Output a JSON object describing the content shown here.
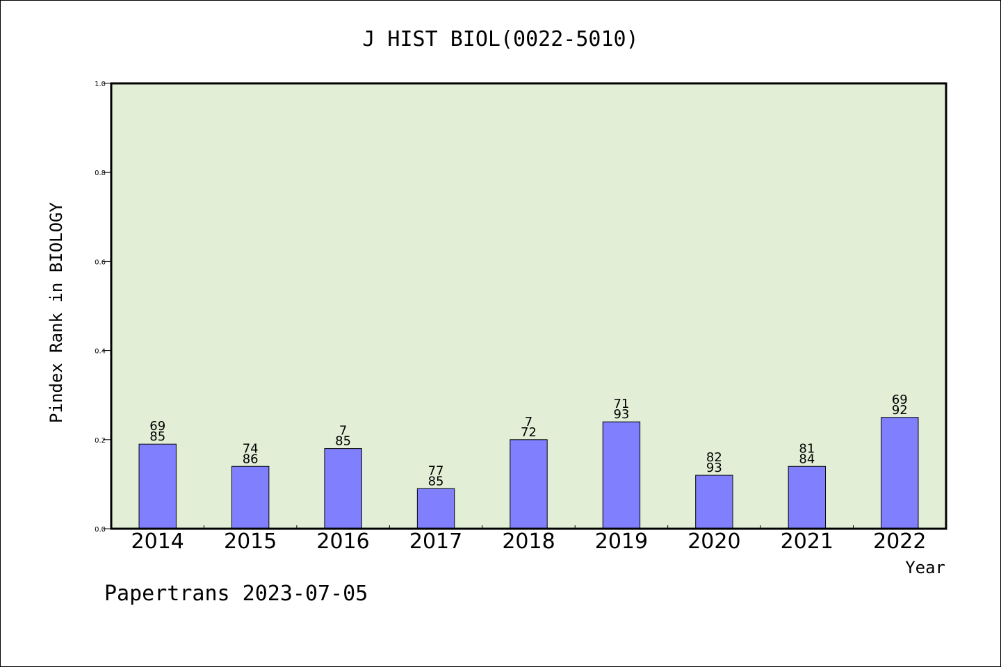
{
  "footer": "Papertrans 2023-07-05",
  "chart_data": {
    "type": "bar",
    "title": "J HIST BIOL(0022-5010)",
    "xlabel": "Year",
    "ylabel": "Pindex Rank in BIOLOGY",
    "ylim": [
      0,
      1.0
    ],
    "yticks": [
      "0.0",
      "0.2",
      "0.4",
      "0.6",
      "0.8",
      "1.0"
    ],
    "grid": false,
    "categories": [
      "2014",
      "2015",
      "2016",
      "2017",
      "2018",
      "2019",
      "2020",
      "2021",
      "2022"
    ],
    "values": [
      0.19,
      0.14,
      0.18,
      0.09,
      0.2,
      0.24,
      0.12,
      0.14,
      0.25
    ],
    "bar_labels": [
      [
        "69",
        "85"
      ],
      [
        "74",
        "86"
      ],
      [
        "7",
        "85"
      ],
      [
        "77",
        "85"
      ],
      [
        "7",
        "72"
      ],
      [
        "71",
        "93"
      ],
      [
        "82",
        "93"
      ],
      [
        "81",
        "84"
      ],
      [
        "69",
        "92"
      ]
    ],
    "colors": {
      "plot_background": "#e2efd6",
      "bar_fill": "#8080ff",
      "bar_edge": "#000000"
    }
  }
}
